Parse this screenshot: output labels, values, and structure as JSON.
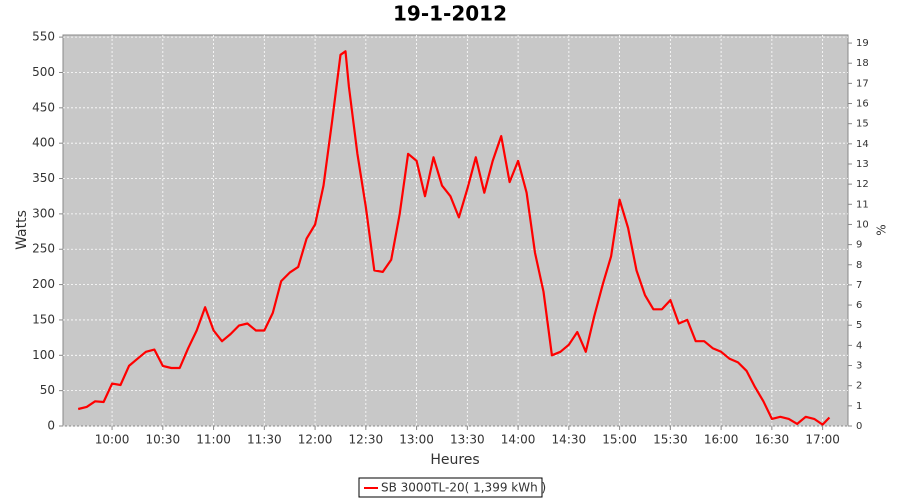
{
  "chart_data": {
    "type": "line",
    "title": "19-1-2012",
    "x_label": "Heures",
    "y_label": "Watts",
    "y2_label": "%",
    "x": [
      "09:40",
      "09:45",
      "09:50",
      "09:55",
      "10:00",
      "10:05",
      "10:10",
      "10:15",
      "10:20",
      "10:25",
      "10:30",
      "10:35",
      "10:40",
      "10:45",
      "10:50",
      "10:55",
      "11:00",
      "11:05",
      "11:10",
      "11:15",
      "11:20",
      "11:25",
      "11:30",
      "11:35",
      "11:40",
      "11:45",
      "11:50",
      "11:55",
      "12:00",
      "12:05",
      "12:10",
      "12:15",
      "12:18",
      "12:20",
      "12:25",
      "12:30",
      "12:35",
      "12:40",
      "12:45",
      "12:50",
      "12:55",
      "13:00",
      "13:05",
      "13:10",
      "13:15",
      "13:20",
      "13:25",
      "13:30",
      "13:35",
      "13:40",
      "13:45",
      "13:50",
      "13:55",
      "14:00",
      "14:05",
      "14:10",
      "14:15",
      "14:20",
      "14:25",
      "14:30",
      "14:35",
      "14:40",
      "14:45",
      "14:50",
      "14:55",
      "15:00",
      "15:05",
      "15:10",
      "15:15",
      "15:20",
      "15:25",
      "15:30",
      "15:35",
      "15:40",
      "15:45",
      "15:50",
      "15:55",
      "16:00",
      "16:05",
      "16:10",
      "16:15",
      "16:20",
      "16:25",
      "16:30",
      "16:35",
      "16:40",
      "16:45",
      "16:50",
      "16:55",
      "17:00",
      "17:04"
    ],
    "series": [
      {
        "name": "SB 3000TL-20( 1,399 kWh )",
        "color": "#ff0000",
        "values": [
          24,
          27,
          35,
          34,
          60,
          58,
          85,
          95,
          105,
          108,
          85,
          82,
          82,
          110,
          135,
          168,
          135,
          120,
          130,
          142,
          145,
          135,
          135,
          160,
          205,
          217,
          225,
          265,
          285,
          340,
          430,
          525,
          530,
          480,
          385,
          310,
          220,
          218,
          235,
          300,
          385,
          375,
          325,
          380,
          340,
          325,
          295,
          335,
          380,
          330,
          375,
          410,
          345,
          375,
          330,
          245,
          190,
          100,
          105,
          115,
          133,
          105,
          155,
          200,
          240,
          320,
          280,
          220,
          185,
          165,
          165,
          178,
          145,
          150,
          120,
          120,
          110,
          105,
          95,
          90,
          78,
          55,
          35,
          10,
          13,
          10,
          3,
          13,
          10,
          2,
          12
        ]
      }
    ],
    "xlim": [
      "09:31",
      "17:15"
    ],
    "xticks": [
      "10:00",
      "10:30",
      "11:00",
      "11:30",
      "12:00",
      "12:30",
      "13:00",
      "13:30",
      "14:00",
      "14:30",
      "15:00",
      "15:30",
      "16:00",
      "16:30",
      "17:00"
    ],
    "ylim": [
      0,
      553
    ],
    "yticks": [
      0,
      50,
      100,
      150,
      200,
      250,
      300,
      350,
      400,
      450,
      500,
      550
    ],
    "y2lim": [
      0,
      19.4
    ],
    "y2ticks": [
      0,
      1,
      2,
      3,
      4,
      5,
      6,
      7,
      8,
      9,
      10,
      11,
      12,
      13,
      14,
      15,
      16,
      17,
      18,
      19
    ],
    "grid": true
  }
}
